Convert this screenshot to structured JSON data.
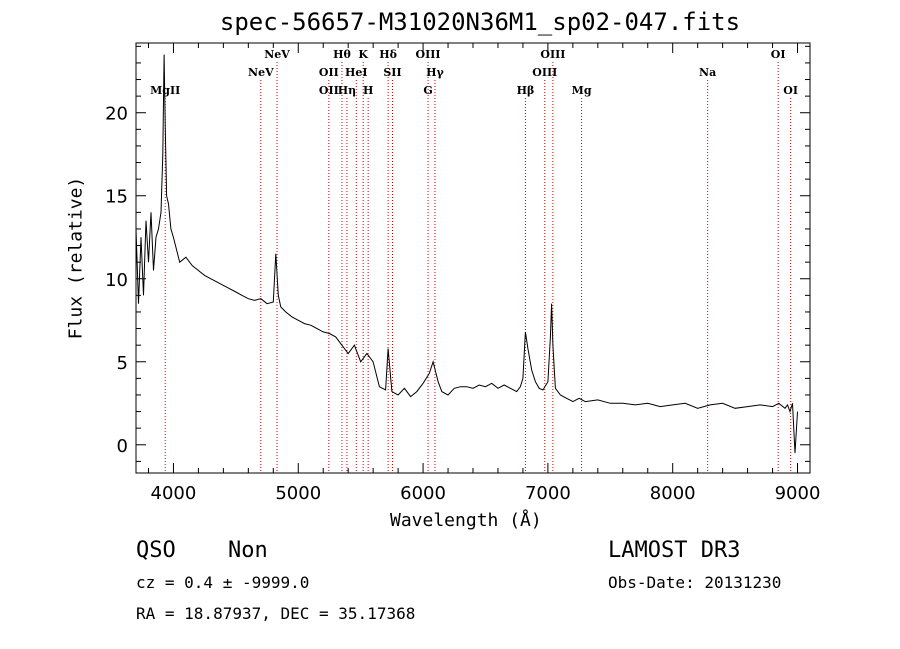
{
  "chart_data": {
    "type": "line",
    "title": "spec-56657-M31020N36M1_sp02-047.fits",
    "xlabel": "Wavelength (Å)",
    "ylabel": "Flux (relative)",
    "xlim": [
      3700,
      9100
    ],
    "ylim": [
      -1.7,
      24.2
    ],
    "xticks": [
      4000,
      5000,
      6000,
      7000,
      8000,
      9000
    ],
    "yticks": [
      0,
      5,
      10,
      15,
      20
    ],
    "grid": false,
    "series": [
      {
        "x": [
          3700,
          3720,
          3740,
          3760,
          3780,
          3800,
          3820,
          3840,
          3860,
          3880,
          3900,
          3915,
          3925,
          3935,
          3945,
          3960,
          3980,
          4000,
          4050,
          4100,
          4150,
          4200,
          4250,
          4300,
          4350,
          4400,
          4450,
          4500,
          4550,
          4600,
          4650,
          4700,
          4750,
          4800,
          4820,
          4840,
          4860,
          4900,
          4950,
          5000,
          5050,
          5100,
          5150,
          5200,
          5250,
          5300,
          5350,
          5400,
          5450,
          5500,
          5550,
          5600,
          5650,
          5700,
          5720,
          5750,
          5800,
          5850,
          5900,
          5950,
          6000,
          6050,
          6080,
          6100,
          6120,
          6150,
          6200,
          6250,
          6300,
          6350,
          6400,
          6450,
          6500,
          6550,
          6600,
          6650,
          6700,
          6750,
          6780,
          6800,
          6820,
          6840,
          6870,
          6900,
          6930,
          6960,
          7000,
          7020,
          7030,
          7040,
          7060,
          7100,
          7150,
          7200,
          7250,
          7300,
          7400,
          7500,
          7600,
          7700,
          7800,
          7900,
          8000,
          8100,
          8200,
          8300,
          8400,
          8500,
          8600,
          8700,
          8800,
          8850,
          8900,
          8920,
          8940,
          8960,
          8980,
          9000
        ],
        "y": [
          13.0,
          8.5,
          12.5,
          9.0,
          13.5,
          11.0,
          14.0,
          10.5,
          12.5,
          13.0,
          14.0,
          17.5,
          23.5,
          19.0,
          15.0,
          14.5,
          13.0,
          12.5,
          11.0,
          11.3,
          10.8,
          10.5,
          10.2,
          10.0,
          9.8,
          9.6,
          9.4,
          9.2,
          9.0,
          8.8,
          8.7,
          8.8,
          8.5,
          8.6,
          11.5,
          9.0,
          8.3,
          8.0,
          7.7,
          7.5,
          7.3,
          7.2,
          7.0,
          6.8,
          6.7,
          6.5,
          6.0,
          5.5,
          6.0,
          5.0,
          5.5,
          5.0,
          3.5,
          3.3,
          5.8,
          3.2,
          3.0,
          3.4,
          2.9,
          3.2,
          3.7,
          4.3,
          5.0,
          4.4,
          3.8,
          3.2,
          3.0,
          3.4,
          3.5,
          3.5,
          3.4,
          3.6,
          3.5,
          3.7,
          3.4,
          3.6,
          3.4,
          3.2,
          3.5,
          4.0,
          6.8,
          5.8,
          4.5,
          3.8,
          3.4,
          3.3,
          3.8,
          6.5,
          8.5,
          6.0,
          3.4,
          3.0,
          2.8,
          2.6,
          2.8,
          2.6,
          2.7,
          2.5,
          2.5,
          2.4,
          2.5,
          2.3,
          2.4,
          2.5,
          2.2,
          2.4,
          2.5,
          2.2,
          2.3,
          2.4,
          2.3,
          2.5,
          2.2,
          2.4,
          2.0,
          2.5,
          -0.5,
          2.0
        ]
      }
    ],
    "line_markers": [
      {
        "name": "MgII",
        "x": 3934,
        "row": 3
      },
      {
        "name": "NeV",
        "x": 4700,
        "row": 2
      },
      {
        "name": "NeV",
        "x": 4830,
        "row": 1
      },
      {
        "name": "OII",
        "x": 5245,
        "row": 2
      },
      {
        "name": "OII",
        "x": 5245,
        "row": 3
      },
      {
        "name": "Hθ",
        "x": 5350,
        "row": 1
      },
      {
        "name": "Hη",
        "x": 5390,
        "row": 3
      },
      {
        "name": "HeI",
        "x": 5465,
        "row": 2
      },
      {
        "name": "K",
        "x": 5520,
        "row": 1
      },
      {
        "name": "H",
        "x": 5560,
        "row": 3
      },
      {
        "name": "Hδ",
        "x": 5720,
        "row": 1
      },
      {
        "name": "SII",
        "x": 5755,
        "row": 2
      },
      {
        "name": "OIII",
        "x": 6040,
        "row": 1
      },
      {
        "name": "Hγ",
        "x": 6095,
        "row": 2
      },
      {
        "name": "G",
        "x": 6040,
        "row": 3
      },
      {
        "name": "Hβ",
        "x": 6820,
        "row": 3
      },
      {
        "name": "OIII",
        "x": 6975,
        "row": 2
      },
      {
        "name": "OIII",
        "x": 7040,
        "row": 1
      },
      {
        "name": "Mg",
        "x": 7270,
        "row": 3
      },
      {
        "name": "Na",
        "x": 8280,
        "row": 2
      },
      {
        "name": "OI",
        "x": 8845,
        "row": 1
      },
      {
        "name": "OI",
        "x": 8945,
        "row": 3
      }
    ],
    "marker_color": "#cc0000"
  },
  "footer": {
    "class_label": "QSO",
    "subclass_label": "Non",
    "cz_text": "cz = 0.4 ± -9999.0",
    "radec_text": "RA =  18.87937, DEC =  35.17368",
    "survey_label": "LAMOST DR3",
    "obs_date_text": "Obs-Date: 20131230"
  }
}
